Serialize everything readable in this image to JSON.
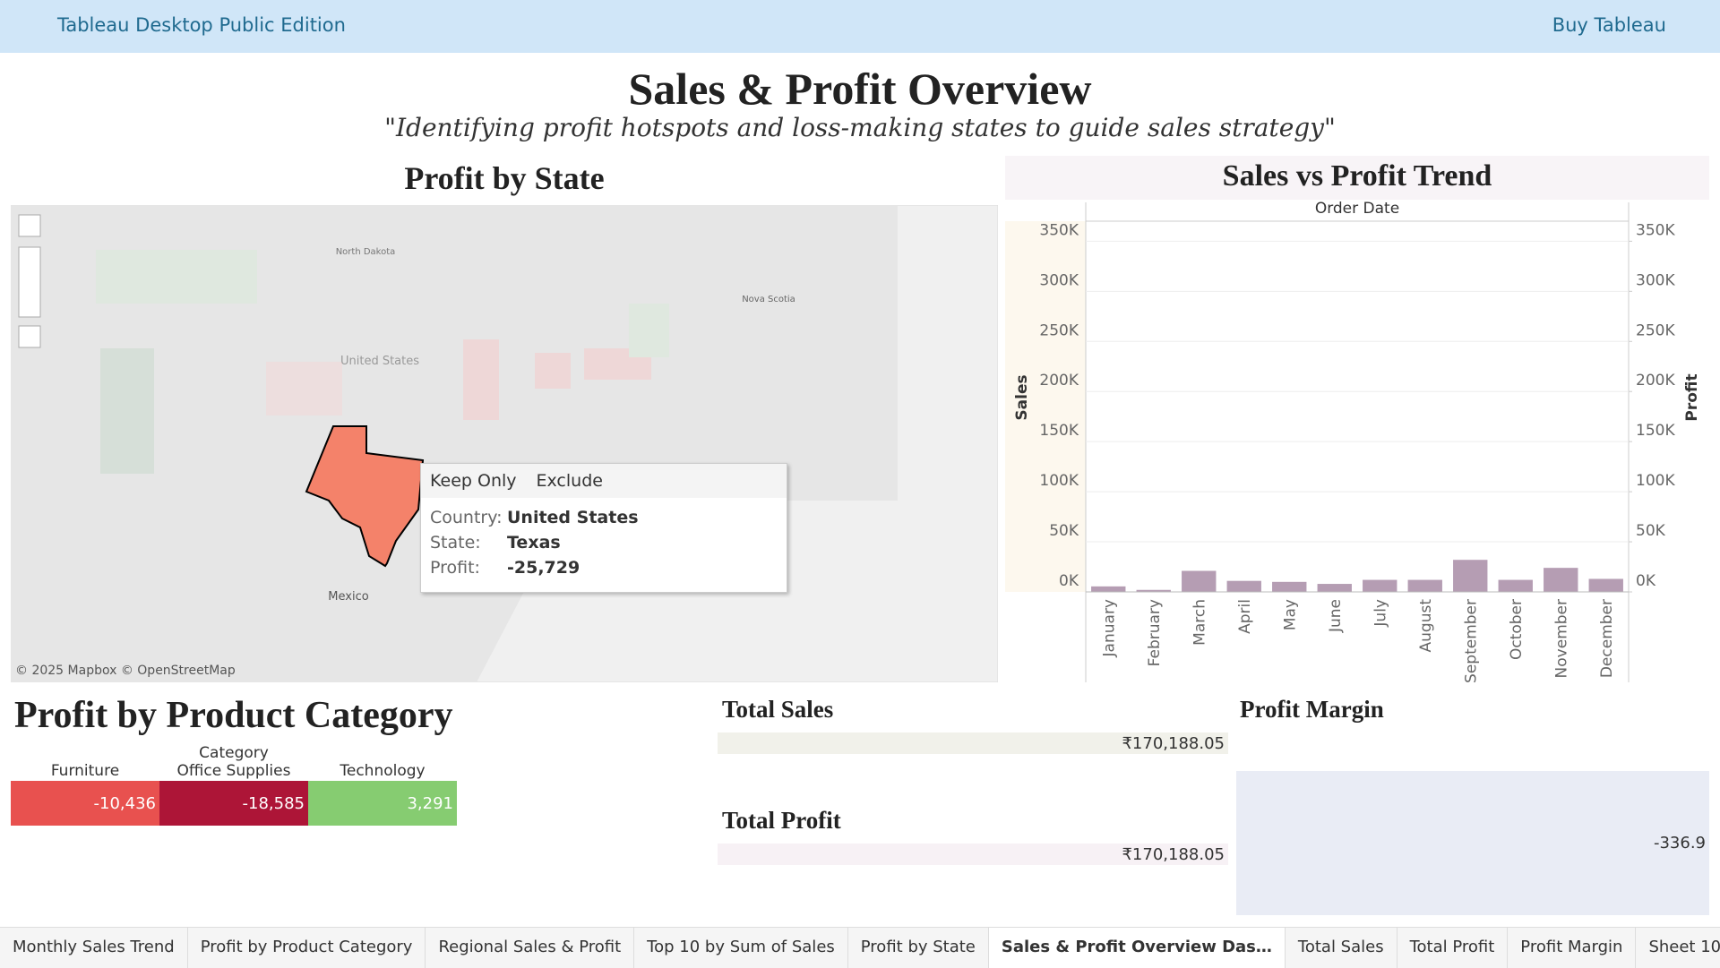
{
  "header": {
    "product": "Tableau Desktop Public Edition",
    "buy": "Buy Tableau"
  },
  "dashboard": {
    "title": "Sales & Profit Overview",
    "subtitle": "\"Identifying profit hotspots and loss-making states to guide sales strategy\""
  },
  "map": {
    "title": "Profit by State",
    "labels": [
      "North Dakota",
      "United States",
      "Nova Scotia",
      "Mexico"
    ],
    "attribution": "© 2025 Mapbox © OpenStreetMap",
    "tooltip": {
      "actions": [
        "Keep Only",
        "Exclude"
      ],
      "rows": [
        [
          "Country:",
          "United States"
        ],
        [
          "State:",
          "Texas"
        ],
        [
          "Profit:",
          "-25,729"
        ]
      ]
    }
  },
  "trend": {
    "type": "bar",
    "title": "Sales vs Profit Trend",
    "x_header": "Order Date",
    "y_label": "Sales",
    "y2_label": "Profit",
    "color": "#b59db3",
    "categories": [
      "January",
      "February",
      "March",
      "April",
      "May",
      "June",
      "July",
      "August",
      "September",
      "October",
      "November",
      "December"
    ],
    "values": [
      5500,
      2000,
      21000,
      11000,
      10000,
      8000,
      12000,
      12000,
      32000,
      12000,
      24000,
      13000
    ],
    "ylim": [
      0,
      370000
    ],
    "yticks": [
      {
        "value": 0,
        "label": "0K"
      },
      {
        "value": 50000,
        "label": "50K"
      },
      {
        "value": 100000,
        "label": "100K"
      },
      {
        "value": 150000,
        "label": "150K"
      },
      {
        "value": 200000,
        "label": "200K"
      },
      {
        "value": 250000,
        "label": "250K"
      },
      {
        "value": 300000,
        "label": "300K"
      },
      {
        "value": 350000,
        "label": "350K"
      }
    ],
    "y2lim": [
      0,
      370000
    ],
    "y2ticks": [
      {
        "value": 0,
        "label": "0K"
      },
      {
        "value": 50000,
        "label": "50K"
      },
      {
        "value": 100000,
        "label": "100K"
      },
      {
        "value": 150000,
        "label": "150K"
      },
      {
        "value": 200000,
        "label": "200K"
      },
      {
        "value": 250000,
        "label": "250K"
      },
      {
        "value": 300000,
        "label": "300K"
      },
      {
        "value": 350000,
        "label": "350K"
      }
    ]
  },
  "category": {
    "title": "Profit by Product Category",
    "header": "Category",
    "cells": [
      {
        "name": "Furniture",
        "value": -10436,
        "label": "-10,436",
        "color": "#e8514f"
      },
      {
        "name": "Office Supplies",
        "value": -18585,
        "label": "-18,585",
        "color": "#ad1537"
      },
      {
        "name": "Technology",
        "value": 3291,
        "label": "3,291",
        "color": "#86cc71"
      }
    ]
  },
  "kpis": {
    "total_sales": {
      "title": "Total Sales",
      "value": "₹170,188.05"
    },
    "total_profit": {
      "title": "Total Profit",
      "value": "₹170,188.05"
    },
    "profit_margin": {
      "title": "Profit Margin",
      "value": "-336.9"
    }
  },
  "tabs": [
    "Monthly Sales Trend",
    "Profit by Product Category",
    "Regional Sales & Profit",
    "Top 10 by Sum of Sales",
    "Profit by State",
    "Sales & Profit Overview Das…",
    "Total Sales",
    "Total Profit",
    "Profit Margin",
    "Sheet 10"
  ],
  "active_tab": 5
}
